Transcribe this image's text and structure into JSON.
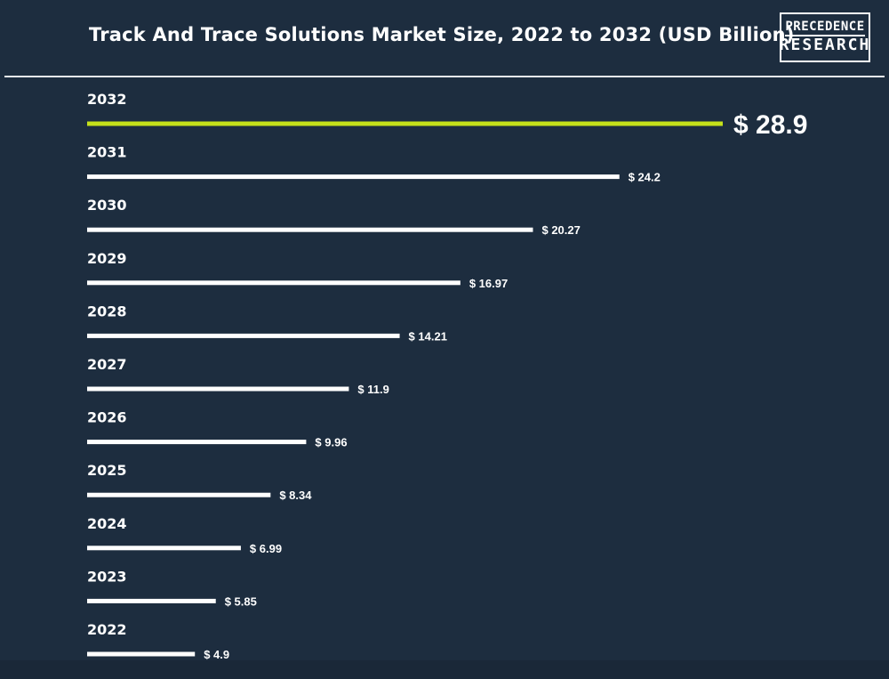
{
  "header": {
    "title": "Track And Trace Solutions Market Size, 2022 to 2032 (USD Billion)"
  },
  "logo": {
    "line1": "PRECEDENCE",
    "line2": "RESEARCH"
  },
  "colors": {
    "background": "#1d2d3f",
    "bar_default": "#ffffff",
    "bar_highlight": "#c5e11a",
    "text": "#ffffff"
  },
  "chart_data": {
    "type": "bar",
    "orientation": "horizontal",
    "title": "Track And Trace Solutions Market Size, 2022 to 2032 (USD Billion)",
    "categories": [
      "2032",
      "2031",
      "2030",
      "2029",
      "2028",
      "2027",
      "2026",
      "2025",
      "2024",
      "2023",
      "2022"
    ],
    "values": [
      28.9,
      24.2,
      20.27,
      16.97,
      14.21,
      11.9,
      9.96,
      8.34,
      6.99,
      5.85,
      4.9
    ],
    "labels": [
      "$ 28.9",
      "$ 24.2",
      "$ 20.27",
      "$ 16.97",
      "$ 14.21",
      "$ 11.9",
      "$ 9.96",
      "$ 8.34",
      "$ 6.99",
      "$ 5.85",
      "$ 4.9"
    ],
    "highlight": "2032",
    "xlabel": "",
    "ylabel": "",
    "unit": "USD Billion",
    "grid": false
  }
}
